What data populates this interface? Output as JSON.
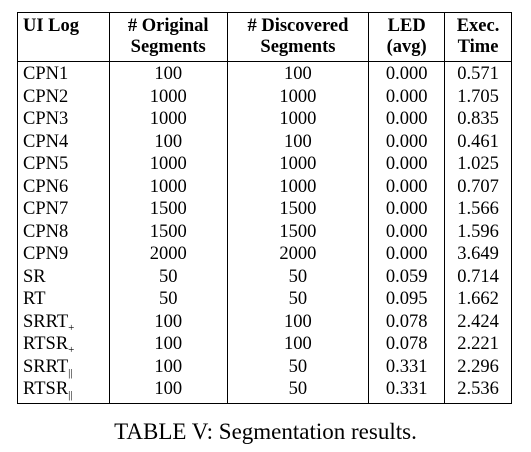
{
  "table": {
    "headers": [
      {
        "line1": "UI Log",
        "line2": ""
      },
      {
        "line1": "# Original",
        "line2": "Segments"
      },
      {
        "line1": "# Discovered",
        "line2": "Segments"
      },
      {
        "line1": "LED",
        "line2": "(avg)"
      },
      {
        "line1": "Exec.",
        "line2": "Time"
      }
    ],
    "rows": [
      {
        "log": "CPN1",
        "sub": "",
        "original": "100",
        "discovered": "100",
        "led": "0.000",
        "time": "0.571"
      },
      {
        "log": "CPN2",
        "sub": "",
        "original": "1000",
        "discovered": "1000",
        "led": "0.000",
        "time": "1.705"
      },
      {
        "log": "CPN3",
        "sub": "",
        "original": "1000",
        "discovered": "1000",
        "led": "0.000",
        "time": "0.835"
      },
      {
        "log": "CPN4",
        "sub": "",
        "original": "100",
        "discovered": "100",
        "led": "0.000",
        "time": "0.461"
      },
      {
        "log": "CPN5",
        "sub": "",
        "original": "1000",
        "discovered": "1000",
        "led": "0.000",
        "time": "1.025"
      },
      {
        "log": "CPN6",
        "sub": "",
        "original": "1000",
        "discovered": "1000",
        "led": "0.000",
        "time": "0.707"
      },
      {
        "log": "CPN7",
        "sub": "",
        "original": "1500",
        "discovered": "1500",
        "led": "0.000",
        "time": "1.566"
      },
      {
        "log": "CPN8",
        "sub": "",
        "original": "1500",
        "discovered": "1500",
        "led": "0.000",
        "time": "1.596"
      },
      {
        "log": "CPN9",
        "sub": "",
        "original": "2000",
        "discovered": "2000",
        "led": "0.000",
        "time": "3.649"
      },
      {
        "log": "SR",
        "sub": "",
        "original": "50",
        "discovered": "50",
        "led": "0.059",
        "time": "0.714"
      },
      {
        "log": "RT",
        "sub": "",
        "original": "50",
        "discovered": "50",
        "led": "0.095",
        "time": "1.662"
      },
      {
        "log": "SRRT",
        "sub": "+",
        "original": "100",
        "discovered": "100",
        "led": "0.078",
        "time": "2.424"
      },
      {
        "log": "RTSR",
        "sub": "+",
        "original": "100",
        "discovered": "100",
        "led": "0.078",
        "time": "2.221"
      },
      {
        "log": "SRRT",
        "sub": "||",
        "original": "100",
        "discovered": "50",
        "led": "0.331",
        "time": "2.296"
      },
      {
        "log": "RTSR",
        "sub": "||",
        "original": "100",
        "discovered": "50",
        "led": "0.331",
        "time": "2.536"
      }
    ]
  },
  "caption": "TABLE V: Segmentation results."
}
